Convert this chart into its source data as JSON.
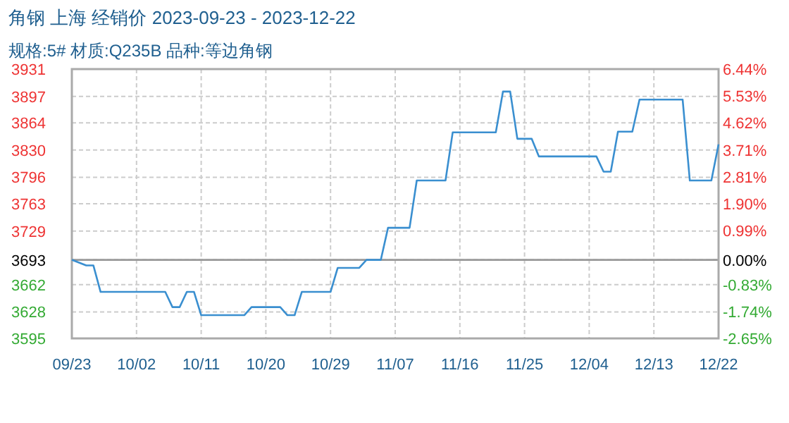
{
  "chart_data": {
    "type": "line",
    "title": "角钢 上海 经销价 2023-09-23 - 2023-12-22",
    "subtitle": "规格:5# 材质:Q235B 品种:等边角钢",
    "x": [
      "2023-09-23",
      "2023-09-25",
      "2023-09-26",
      "2023-09-27",
      "2023-10-06",
      "2023-10-07",
      "2023-10-08",
      "2023-10-09",
      "2023-10-10",
      "2023-10-11",
      "2023-10-17",
      "2023-10-18",
      "2023-10-22",
      "2023-10-23",
      "2023-10-24",
      "2023-10-25",
      "2023-10-29",
      "2023-10-30",
      "2023-11-02",
      "2023-11-03",
      "2023-11-05",
      "2023-11-06",
      "2023-11-09",
      "2023-11-10",
      "2023-11-14",
      "2023-11-15",
      "2023-11-21",
      "2023-11-22",
      "2023-11-23",
      "2023-11-24",
      "2023-11-26",
      "2023-11-27",
      "2023-12-05",
      "2023-12-06",
      "2023-12-07",
      "2023-12-08",
      "2023-12-10",
      "2023-12-11",
      "2023-12-17",
      "2023-12-18",
      "2023-12-21",
      "2023-12-22"
    ],
    "series": [
      {
        "color": "#3a8fd0",
        "values": [
          3693,
          3686,
          3686,
          3653,
          3653,
          3634,
          3634,
          3653,
          3653,
          3624,
          3624,
          3634,
          3634,
          3624,
          3624,
          3653,
          3653,
          3683,
          3683,
          3693,
          3693,
          3733,
          3733,
          3792,
          3792,
          3852,
          3852,
          3903,
          3903,
          3844,
          3844,
          3822,
          3822,
          3803,
          3803,
          3853,
          3853,
          3893,
          3893,
          3792,
          3792,
          3837
        ]
      }
    ],
    "xlim": [
      "2023-09-23",
      "2023-12-22"
    ],
    "xticks": [
      {
        "value": "2023-09-23",
        "label": "09/23"
      },
      {
        "value": "2023-10-02",
        "label": "10/02"
      },
      {
        "value": "2023-10-11",
        "label": "10/11"
      },
      {
        "value": "2023-10-20",
        "label": "10/20"
      },
      {
        "value": "2023-10-29",
        "label": "10/29"
      },
      {
        "value": "2023-11-07",
        "label": "11/07"
      },
      {
        "value": "2023-11-16",
        "label": "11/16"
      },
      {
        "value": "2023-11-25",
        "label": "11/25"
      },
      {
        "value": "2023-12-04",
        "label": "12/04"
      },
      {
        "value": "2023-12-13",
        "label": "12/13"
      },
      {
        "value": "2023-12-22",
        "label": "12/22"
      }
    ],
    "ylim": [
      3595,
      3931
    ],
    "yticks": [
      3595,
      3628,
      3662,
      3693,
      3729,
      3763,
      3796,
      3830,
      3864,
      3897,
      3931
    ],
    "y2lim": [
      -2.65,
      6.44
    ],
    "y2ticks": [
      {
        "value": -2.65,
        "label": "-2.65%"
      },
      {
        "value": -1.74,
        "label": "-1.74%"
      },
      {
        "value": -0.83,
        "label": "-0.83%"
      },
      {
        "value": 0,
        "label": "0.00%"
      },
      {
        "value": 0.99,
        "label": "0.99%"
      },
      {
        "value": 1.9,
        "label": "1.90%"
      },
      {
        "value": 2.81,
        "label": "2.81%"
      },
      {
        "value": 3.71,
        "label": "3.71%"
      },
      {
        "value": 4.62,
        "label": "4.62%"
      },
      {
        "value": 5.53,
        "label": "5.53%"
      },
      {
        "value": 6.44,
        "label": "6.44%"
      }
    ],
    "ref_lines": [
      {
        "axis": "y",
        "value": 3693,
        "color": "#999999"
      }
    ],
    "grid": true,
    "marker": "none",
    "line_style": "solid"
  }
}
